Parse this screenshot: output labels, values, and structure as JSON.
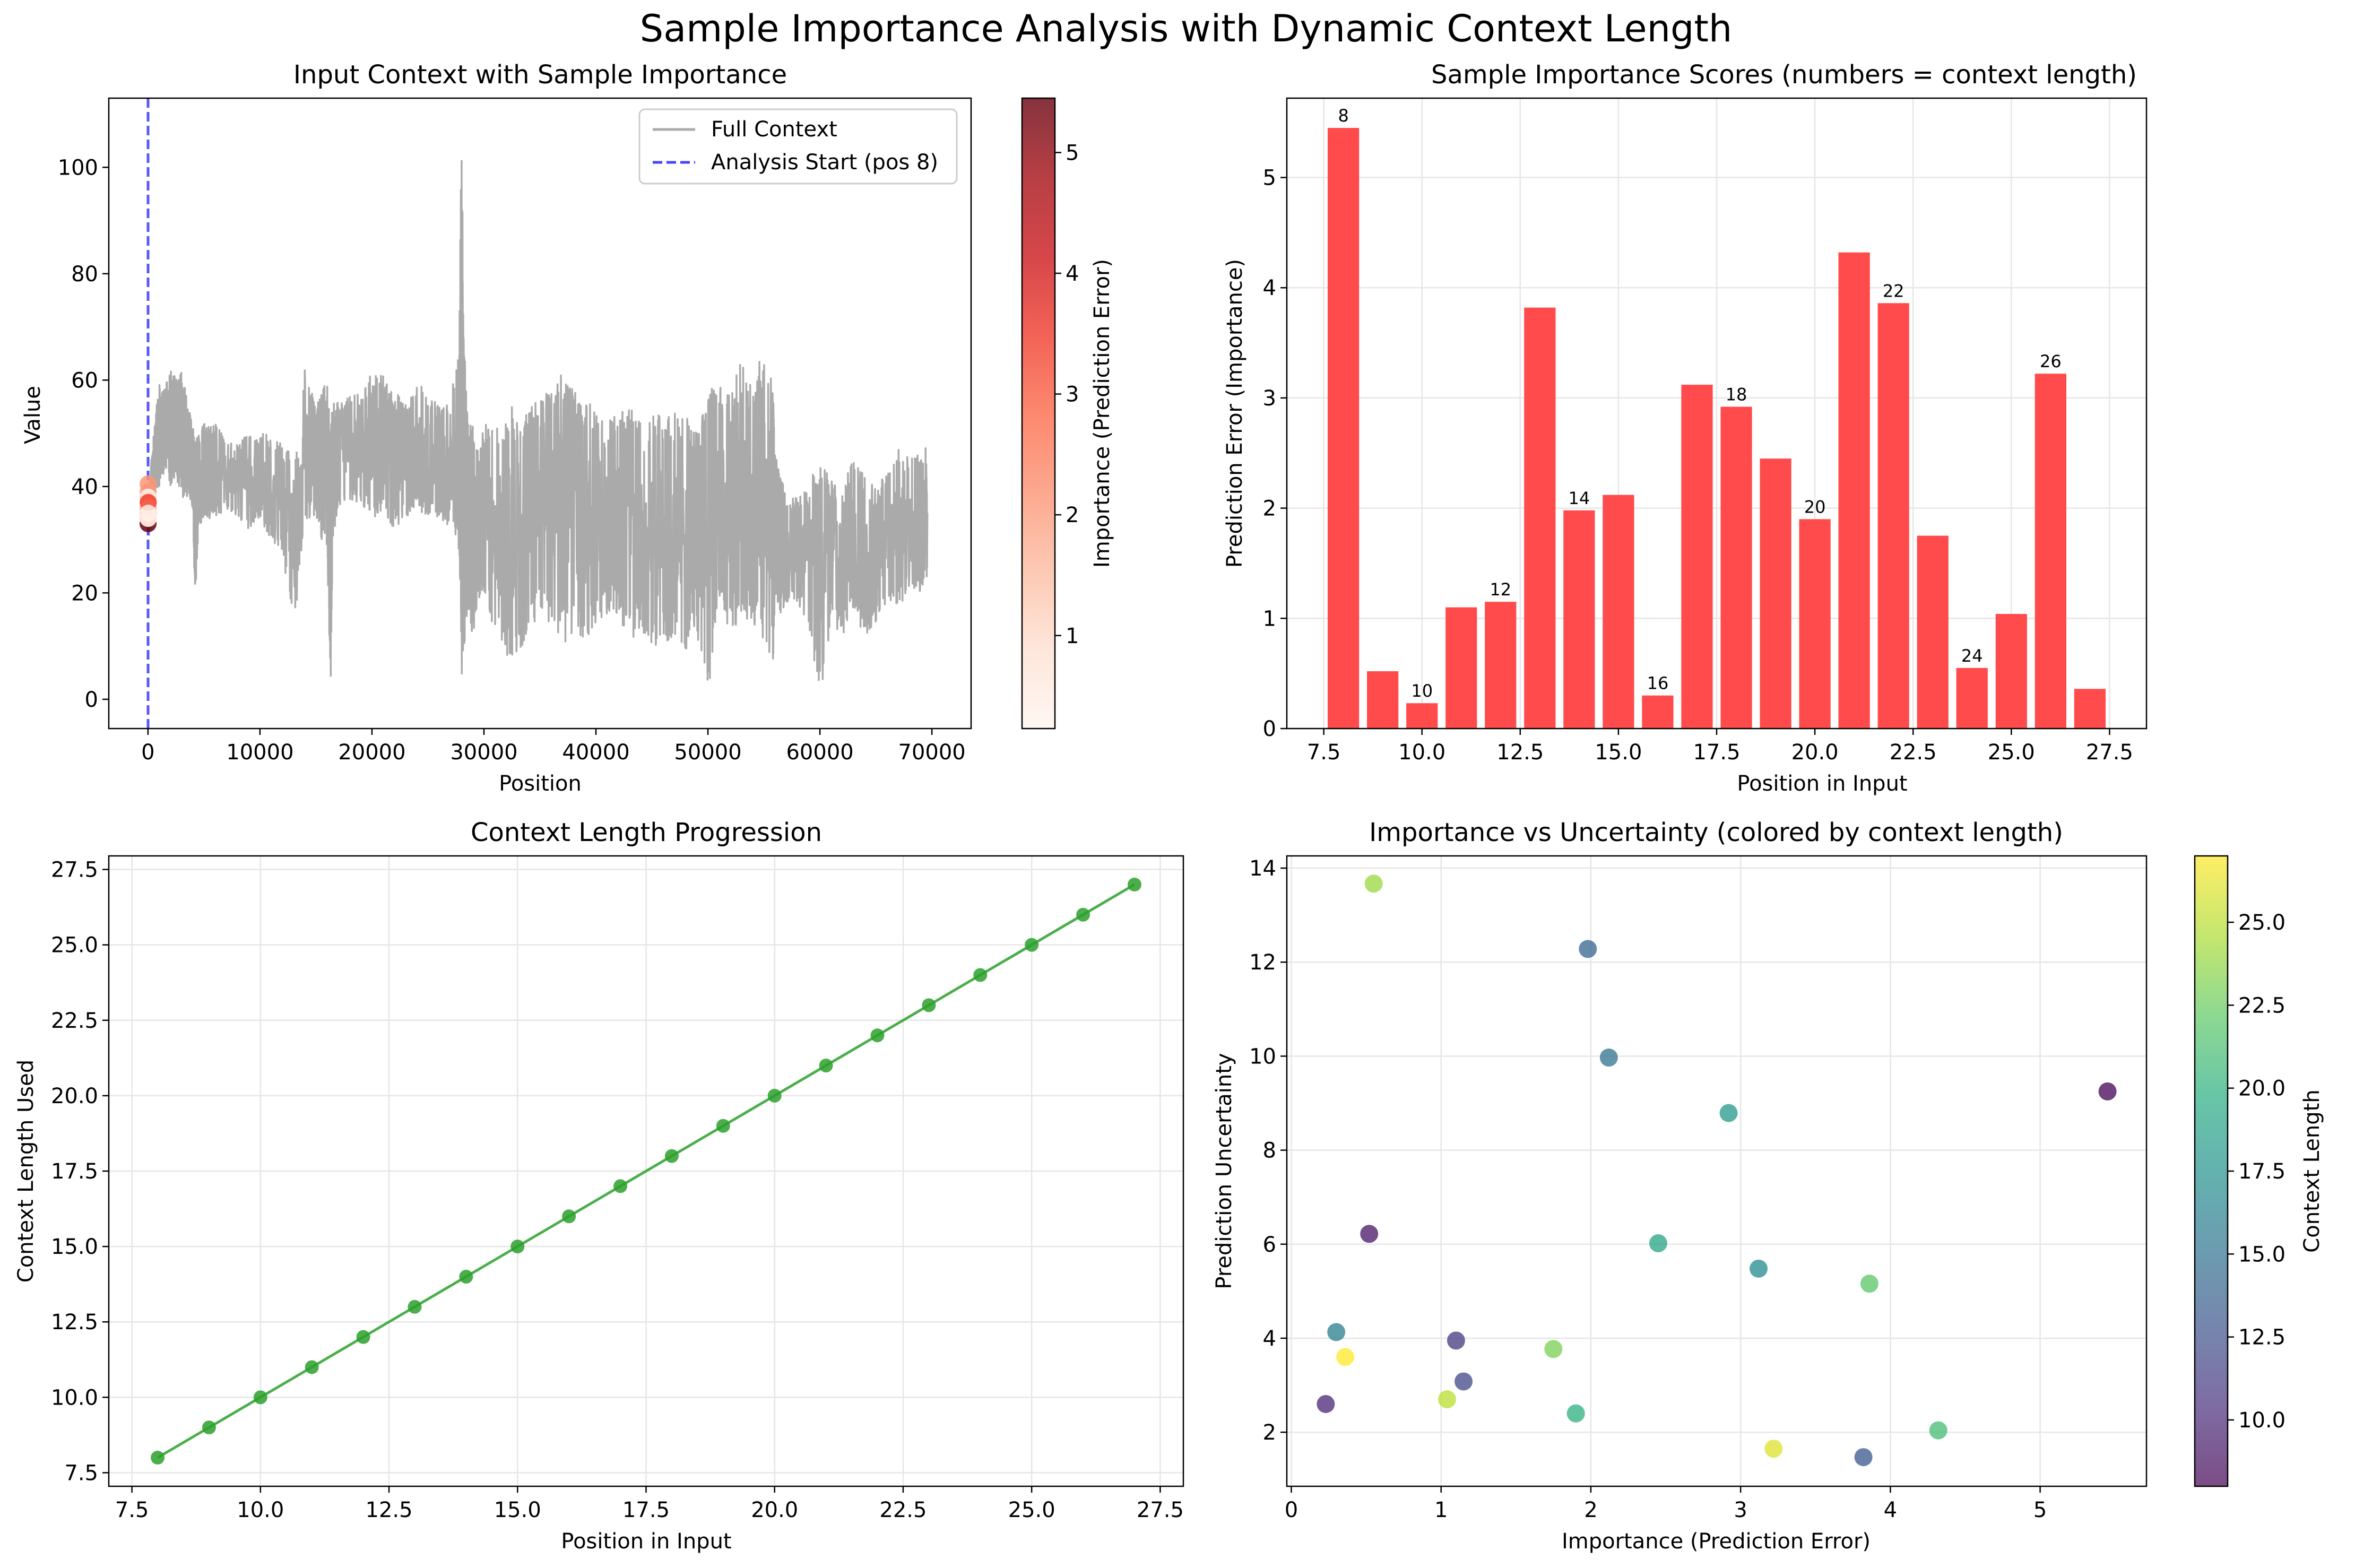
{
  "suptitle": "Sample Importance Analysis with Dynamic Context Length",
  "colors": {
    "gray_line": "#aaaaaa",
    "blue_dash": "#4444ff",
    "red_bar": "#ff4b4b",
    "green": "#2ca02c",
    "grid": "#e6e6e6"
  },
  "chart_data": [
    {
      "id": "input_context",
      "type": "line",
      "title": "Input Context with Sample Importance",
      "xlabel": "Position",
      "ylabel": "Value",
      "xlim": [
        -3500,
        73500
      ],
      "ylim": [
        -5.5,
        113
      ],
      "xticks": [
        0,
        10000,
        20000,
        30000,
        40000,
        50000,
        60000,
        70000
      ],
      "xtick_labels": [
        "0",
        "10000",
        "20000",
        "30000",
        "40000",
        "50000",
        "60000",
        "70000"
      ],
      "yticks": [
        0,
        20,
        40,
        60,
        80,
        100
      ],
      "series": [
        {
          "name": "Full Context",
          "x": [
            0,
            300,
            600,
            1000,
            1500,
            2000,
            2500,
            3000,
            3500,
            4000,
            4200,
            4500,
            5000,
            5500,
            6000,
            7000,
            8000,
            9000,
            10000,
            11000,
            12000,
            13000,
            14000,
            15000,
            15500,
            16000,
            16300,
            16500,
            17000,
            18000,
            19000,
            20000,
            21000,
            22000,
            23000,
            24000,
            25000,
            26000,
            27000,
            27800,
            28000,
            28200,
            28500,
            29000,
            29500,
            30000,
            31000,
            32000,
            33000,
            34000,
            35000,
            36000,
            37000,
            38000,
            39000,
            40000,
            41000,
            42000,
            43000,
            44000,
            45000,
            46000,
            47000,
            48000,
            49000,
            50000,
            51000,
            52000,
            53000,
            54000,
            55000,
            55800,
            56000,
            56500,
            57000,
            58000,
            59000,
            60000,
            61000,
            62000,
            63000,
            64000,
            65000,
            66000,
            67000,
            68000,
            69000,
            69600
          ],
          "high": [
            38,
            45,
            52,
            60,
            58,
            63,
            60,
            62,
            56,
            52,
            48,
            50,
            52,
            51,
            52,
            49,
            48,
            50,
            50,
            50,
            48,
            46,
            62,
            55,
            58,
            60,
            50,
            56,
            56,
            57,
            58,
            62,
            61,
            58,
            56,
            60,
            58,
            55,
            56,
            70,
            108,
            70,
            54,
            52,
            47,
            52,
            50,
            56,
            55,
            56,
            57,
            58,
            62,
            58,
            58,
            56,
            52,
            54,
            55,
            52,
            53,
            55,
            54,
            55,
            52,
            58,
            60,
            58,
            64,
            58,
            68,
            60,
            46,
            42,
            38,
            38,
            40,
            46,
            42,
            40,
            46,
            42,
            40,
            44,
            48,
            46,
            46,
            48
          ],
          "low": [
            30,
            32,
            38,
            40,
            42,
            40,
            42,
            38,
            38,
            36,
            18,
            32,
            34,
            34,
            34,
            36,
            34,
            32,
            34,
            30,
            28,
            12,
            34,
            34,
            30,
            28,
            0,
            30,
            36,
            37,
            36,
            34,
            34,
            32,
            34,
            36,
            34,
            34,
            32,
            28,
            0,
            8,
            16,
            12,
            18,
            20,
            10,
            8,
            8,
            12,
            16,
            14,
            10,
            12,
            10,
            14,
            16,
            16,
            10,
            14,
            8,
            10,
            12,
            8,
            12,
            0,
            18,
            12,
            16,
            14,
            10,
            6,
            20,
            16,
            18,
            18,
            14,
            0,
            14,
            12,
            16,
            12,
            14,
            18,
            16,
            20,
            20,
            22
          ]
        },
        {
          "name": "Analysis Start (pos 8)",
          "x_value": 8
        }
      ],
      "scatter_points": {
        "x": [
          8,
          9,
          10,
          11,
          12,
          13,
          14,
          15,
          16,
          17,
          18,
          19,
          20,
          21,
          22,
          23,
          24,
          25,
          26,
          27
        ],
        "y": [
          33,
          34,
          35,
          36,
          37,
          38,
          39,
          40.5,
          38,
          37,
          36,
          35,
          34,
          35,
          36,
          35,
          34,
          36,
          37,
          35
        ],
        "importance": [
          5.45,
          0.52,
          0.23,
          1.1,
          1.15,
          3.82,
          1.98,
          2.12,
          0.3,
          3.12,
          2.92,
          2.45,
          1.9,
          4.32,
          3.86,
          1.75,
          0.55,
          1.04,
          3.22,
          0.36
        ]
      },
      "colorbar": {
        "label": "Importance (Prediction Error)",
        "range": [
          0.23,
          5.45
        ],
        "ticks": [
          1,
          2,
          3,
          4,
          5
        ],
        "colormap": "Reds"
      },
      "legend": "top-right"
    },
    {
      "id": "importance_scores",
      "type": "bar",
      "title": "Sample Importance Scores (numbers = context length)",
      "xlabel": "Position in Input",
      "ylabel": "Prediction Error (Importance)",
      "xlim": [
        6.56,
        28.44
      ],
      "ylim": [
        0,
        5.72
      ],
      "xticks": [
        7.5,
        10.0,
        12.5,
        15.0,
        17.5,
        20.0,
        22.5,
        25.0,
        27.5
      ],
      "xtick_labels": [
        "7.5",
        "10.0",
        "12.5",
        "15.0",
        "17.5",
        "20.0",
        "22.5",
        "25.0",
        "27.5"
      ],
      "yticks": [
        0,
        1,
        2,
        3,
        4,
        5
      ],
      "categories": [
        8,
        9,
        10,
        11,
        12,
        13,
        14,
        15,
        16,
        17,
        18,
        19,
        20,
        21,
        22,
        23,
        24,
        25,
        26,
        27
      ],
      "values": [
        5.45,
        0.52,
        0.23,
        1.1,
        1.15,
        3.82,
        1.98,
        2.12,
        0.3,
        3.12,
        2.92,
        2.45,
        1.9,
        4.32,
        3.86,
        1.75,
        0.55,
        1.04,
        3.22,
        0.36
      ],
      "bar_labels": [
        "8",
        "",
        "10",
        "",
        "12",
        "",
        "14",
        "",
        "16",
        "",
        "18",
        "",
        "20",
        "",
        "22",
        "",
        "24",
        "",
        "26",
        ""
      ],
      "bar_width": 0.8
    },
    {
      "id": "context_progression",
      "type": "line",
      "title": "Context Length Progression",
      "xlabel": "Position in Input",
      "ylabel": "Context Length Used",
      "xlim": [
        7.05,
        27.95
      ],
      "ylim": [
        7.05,
        27.95
      ],
      "xticks": [
        7.5,
        10.0,
        12.5,
        15.0,
        17.5,
        20.0,
        22.5,
        25.0,
        27.5
      ],
      "xtick_labels": [
        "7.5",
        "10.0",
        "12.5",
        "15.0",
        "17.5",
        "20.0",
        "22.5",
        "25.0",
        "27.5"
      ],
      "yticks": [
        7.5,
        10.0,
        12.5,
        15.0,
        17.5,
        20.0,
        22.5,
        25.0,
        27.5
      ],
      "ytick_labels": [
        "7.5",
        "10.0",
        "12.5",
        "15.0",
        "17.5",
        "20.0",
        "22.5",
        "25.0",
        "27.5"
      ],
      "x": [
        8,
        9,
        10,
        11,
        12,
        13,
        14,
        15,
        16,
        17,
        18,
        19,
        20,
        21,
        22,
        23,
        24,
        25,
        26,
        27
      ],
      "y": [
        8,
        9,
        10,
        11,
        12,
        13,
        14,
        15,
        16,
        17,
        18,
        19,
        20,
        21,
        22,
        23,
        24,
        25,
        26,
        27
      ]
    },
    {
      "id": "importance_vs_uncertainty",
      "type": "scatter",
      "title": "Importance vs Uncertainty (colored by context length)",
      "xlabel": "Importance (Prediction Error)",
      "ylabel": "Prediction Uncertainty",
      "xlim": [
        -0.03,
        5.71
      ],
      "ylim": [
        0.85,
        14.26
      ],
      "xticks": [
        0,
        1,
        2,
        3,
        4,
        5
      ],
      "yticks": [
        2,
        4,
        6,
        8,
        10,
        12,
        14
      ],
      "x": [
        5.45,
        0.52,
        0.23,
        1.1,
        1.15,
        3.82,
        1.98,
        2.12,
        0.3,
        3.12,
        2.92,
        2.45,
        1.9,
        4.32,
        3.86,
        1.75,
        0.55,
        1.04,
        3.22,
        0.36
      ],
      "y": [
        9.25,
        6.22,
        2.6,
        3.95,
        3.08,
        1.47,
        12.28,
        9.97,
        4.13,
        5.48,
        8.79,
        6.02,
        2.4,
        2.04,
        5.16,
        3.77,
        13.67,
        2.7,
        1.65,
        3.6
      ],
      "color_values": [
        8,
        9,
        10,
        11,
        12,
        13,
        14,
        15,
        16,
        17,
        18,
        19,
        20,
        21,
        22,
        23,
        24,
        25,
        26,
        27
      ],
      "colorbar": {
        "label": "Context Length",
        "range": [
          8,
          27
        ],
        "ticks": [
          10.0,
          12.5,
          15.0,
          17.5,
          20.0,
          22.5,
          25.0
        ],
        "tick_labels": [
          "10.0",
          "12.5",
          "15.0",
          "17.5",
          "20.0",
          "22.5",
          "25.0"
        ],
        "colormap": "viridis"
      }
    }
  ]
}
